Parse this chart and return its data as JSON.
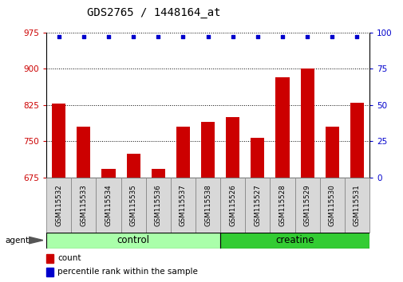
{
  "title": "GDS2765 / 1448164_at",
  "samples": [
    "GSM115532",
    "GSM115533",
    "GSM115534",
    "GSM115535",
    "GSM115536",
    "GSM115537",
    "GSM115538",
    "GSM115526",
    "GSM115527",
    "GSM115528",
    "GSM115529",
    "GSM115530",
    "GSM115531"
  ],
  "counts": [
    828,
    780,
    693,
    725,
    693,
    780,
    790,
    800,
    757,
    882,
    900,
    780,
    830
  ],
  "percentiles": [
    99,
    99,
    99,
    99,
    99,
    99,
    99,
    99,
    99,
    99,
    99,
    99,
    99
  ],
  "groups": [
    {
      "label": "control",
      "indices": [
        0,
        1,
        2,
        3,
        4,
        5,
        6
      ],
      "color": "#AAFFAA"
    },
    {
      "label": "creatine",
      "indices": [
        7,
        8,
        9,
        10,
        11,
        12
      ],
      "color": "#33CC33"
    }
  ],
  "ylim_left": [
    675,
    975
  ],
  "ylim_right": [
    0,
    100
  ],
  "yticks_left": [
    675,
    750,
    825,
    900,
    975
  ],
  "yticks_right": [
    0,
    25,
    50,
    75,
    100
  ],
  "bar_color": "#CC0000",
  "dot_color": "#0000CC",
  "bg_color": "#FFFFFF",
  "grid_color": "#000000",
  "label_color_left": "#CC0000",
  "label_color_right": "#0000CC",
  "tick_area_color": "#CCCCCC",
  "group_border_color": "#000000",
  "agent_label": "agent",
  "legend_count_label": "count",
  "legend_percentile_label": "percentile rank within the sample",
  "title_fontsize": 10,
  "tick_fontsize": 7.5,
  "label_fontsize": 8,
  "group_fontsize": 8.5
}
